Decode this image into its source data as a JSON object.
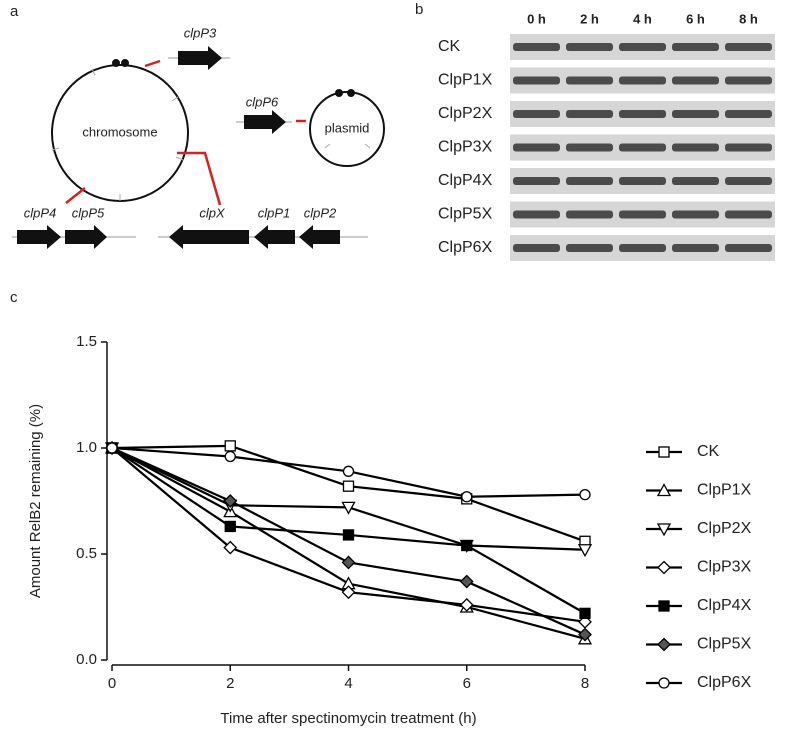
{
  "panel_a": {
    "label": "a",
    "chromosome": "chromosome",
    "plasmid": "plasmid",
    "genes": [
      "clpP3",
      "clpP6",
      "clpP4",
      "clpP5",
      "clpX",
      "clpP1",
      "clpP2"
    ]
  },
  "panel_b": {
    "label": "b",
    "times": [
      "0 h",
      "2 h",
      "4 h",
      "6 h",
      "8 h"
    ],
    "rows": [
      "CK",
      "ClpP1X",
      "ClpP2X",
      "ClpP3X",
      "ClpP4X",
      "ClpP5X",
      "ClpP6X"
    ]
  },
  "chart_data": {
    "type": "line",
    "label": "c",
    "xlabel": "Time after spectinomycin treatment (h)",
    "ylabel": "Amount RelB2 remaining (%)",
    "x": [
      0,
      2,
      4,
      6,
      8
    ],
    "xlim": [
      0,
      8
    ],
    "xticks": [
      0,
      2,
      4,
      6,
      8
    ],
    "ylim": [
      0,
      1.5
    ],
    "yticks": [
      {
        "value": 0,
        "label": "0.0"
      },
      0.5,
      {
        "value": 1,
        "label": "1.0"
      },
      1.5
    ],
    "legend": "right",
    "series": [
      {
        "name": "CK",
        "color": "#000000",
        "marker": "square-open",
        "values": [
          1.0,
          1.01,
          0.82,
          0.76,
          0.56
        ]
      },
      {
        "name": "ClpP1X",
        "color": "#000000",
        "marker": "triangle-up",
        "values": [
          1.0,
          0.7,
          0.36,
          0.25,
          0.1
        ]
      },
      {
        "name": "ClpP2X",
        "color": "#000000",
        "marker": "triangle-down",
        "values": [
          1.0,
          0.73,
          0.72,
          0.54,
          0.52
        ]
      },
      {
        "name": "ClpP3X",
        "color": "#000000",
        "marker": "diamond-open",
        "values": [
          1.0,
          0.53,
          0.32,
          0.26,
          0.18
        ]
      },
      {
        "name": "ClpP4X",
        "color": "#000000",
        "marker": "square-filled",
        "values": [
          1.0,
          0.63,
          0.59,
          0.54,
          0.22
        ]
      },
      {
        "name": "ClpP5X",
        "color": "#000000",
        "marker": "diamond-cross",
        "values": [
          1.0,
          0.75,
          0.46,
          0.37,
          0.12
        ]
      },
      {
        "name": "ClpP6X",
        "color": "#000000",
        "marker": "circle-open",
        "values": [
          1.0,
          0.96,
          0.89,
          0.77,
          0.78
        ]
      }
    ]
  }
}
